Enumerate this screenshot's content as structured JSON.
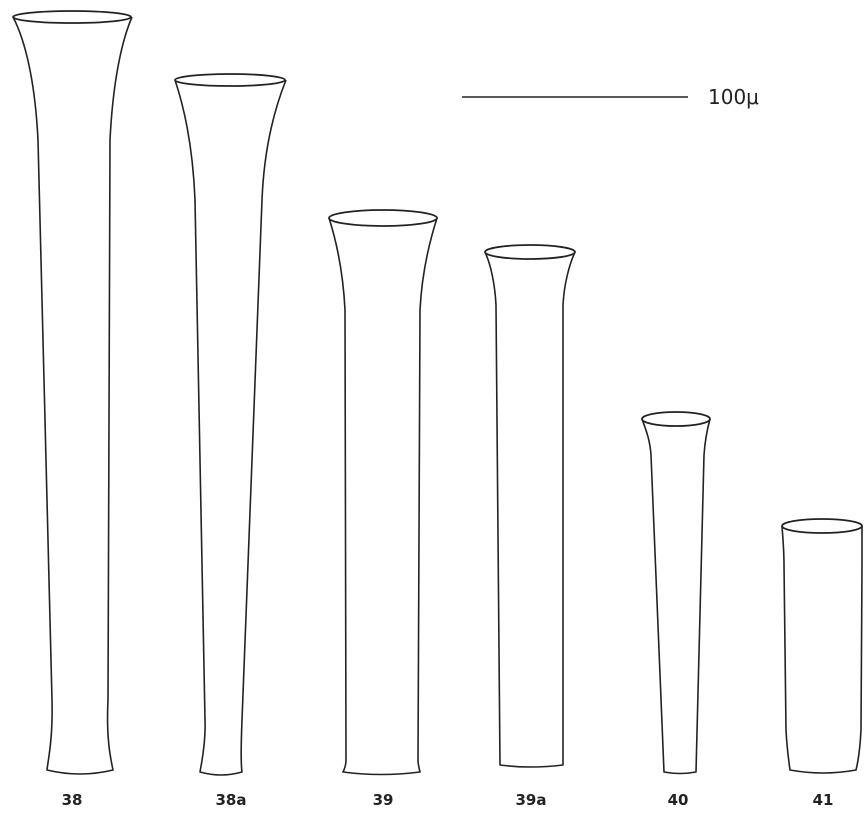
{
  "scale_bar": {
    "label": "100μ"
  },
  "figures": [
    {
      "label": "38"
    },
    {
      "label": "38a"
    },
    {
      "label": "39"
    },
    {
      "label": "39a"
    },
    {
      "label": "40"
    },
    {
      "label": "41"
    }
  ]
}
